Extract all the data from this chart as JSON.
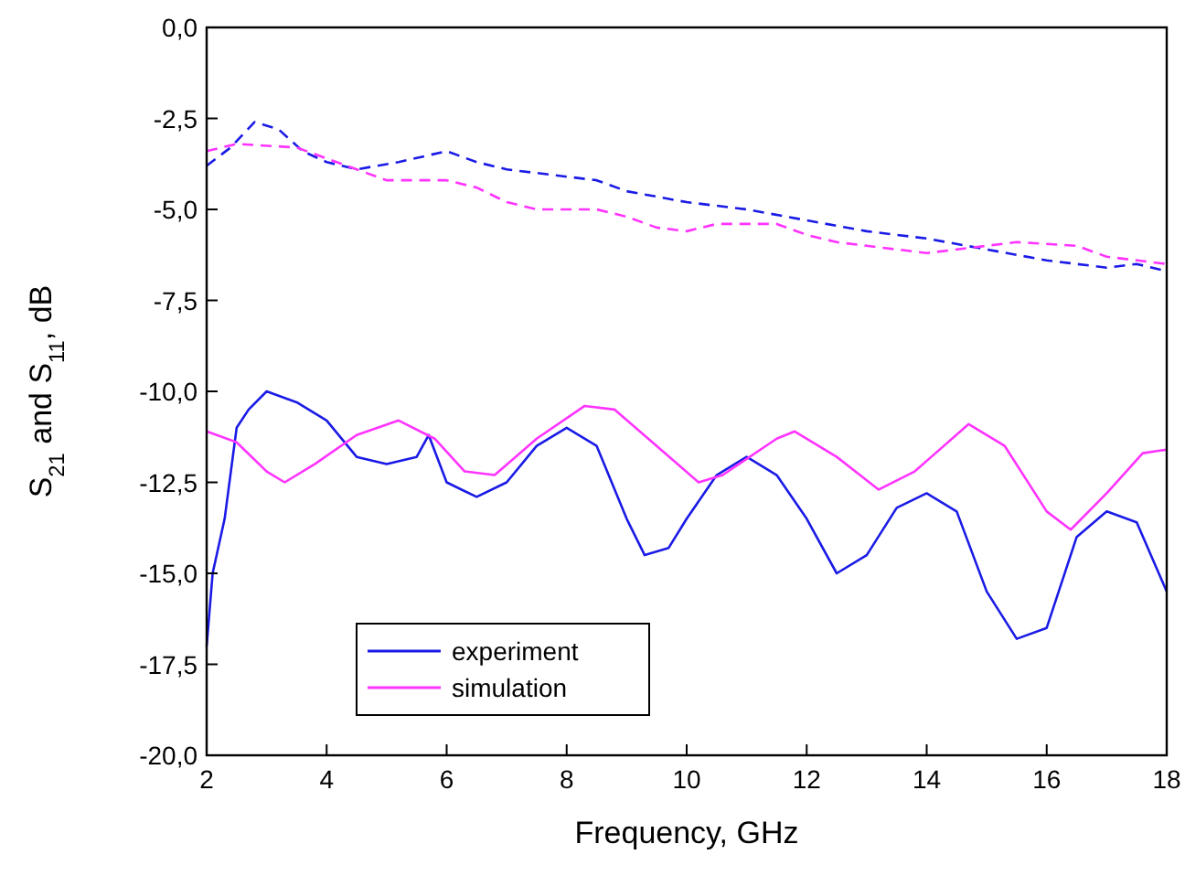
{
  "chart_data": {
    "type": "line",
    "xlabel": "Frequency, GHz",
    "ylabel": "S$_{21}$ and S$_{11}$, dB",
    "xlim": [
      2,
      18
    ],
    "xticks": [
      2,
      4,
      6,
      8,
      10,
      12,
      14,
      16,
      18
    ],
    "ylim": [
      -20,
      0
    ],
    "yticks": [
      {
        "value": -20,
        "label": "-20,0"
      },
      {
        "value": -17.5,
        "label": "-17,5"
      },
      {
        "value": -15,
        "label": "-15,0"
      },
      {
        "value": -12.5,
        "label": "-12,5"
      },
      {
        "value": -10,
        "label": "-10,0"
      },
      {
        "value": -7.5,
        "label": "-7,5"
      },
      {
        "value": -5,
        "label": "-5,0"
      },
      {
        "value": -2.5,
        "label": "-2,5"
      },
      {
        "value": 0,
        "label": "0,0"
      }
    ],
    "grid": false,
    "legend": "bottom left",
    "series": [
      {
        "name": "experiment",
        "color": "#1a1ae6",
        "line_style": "solid",
        "x": [
          2,
          2.1,
          2.3,
          2.5,
          2.7,
          3,
          3.5,
          4,
          4.5,
          5,
          5.5,
          5.7,
          6,
          6.5,
          7,
          7.5,
          8,
          8.5,
          9,
          9.3,
          9.7,
          10,
          10.5,
          11,
          11.5,
          12,
          12.5,
          13,
          13.5,
          14,
          14.5,
          15,
          15.5,
          16,
          16.5,
          17,
          17.5,
          18
        ],
        "values": [
          -17,
          -15,
          -13.5,
          -11,
          -10.5,
          -10,
          -10.3,
          -10.8,
          -11.8,
          -12,
          -11.8,
          -11.2,
          -12.5,
          -12.9,
          -12.5,
          -11.5,
          -11,
          -11.5,
          -13.5,
          -14.5,
          -14.3,
          -13.5,
          -12.3,
          -11.8,
          -12.3,
          -13.5,
          -15,
          -14.5,
          -13.2,
          -12.8,
          -13.3,
          -15.5,
          -16.8,
          -16.5,
          -14,
          -13.3,
          -13.6,
          -15.5
        ]
      },
      {
        "name": "simulation",
        "color": "#ff33ff",
        "line_style": "solid",
        "x": [
          2,
          2.5,
          3,
          3.3,
          3.8,
          4.5,
          5.2,
          5.8,
          6.3,
          6.8,
          7.5,
          8.3,
          8.8,
          9.5,
          10.2,
          10.6,
          11.5,
          11.8,
          12.5,
          13.2,
          13.8,
          14.7,
          15.3,
          16,
          16.4,
          17,
          17.6,
          18
        ],
        "values": [
          -11.1,
          -11.4,
          -12.2,
          -12.5,
          -12,
          -11.2,
          -10.8,
          -11.3,
          -12.2,
          -12.3,
          -11.3,
          -10.4,
          -10.5,
          -11.5,
          -12.5,
          -12.3,
          -11.3,
          -11.1,
          -11.8,
          -12.7,
          -12.2,
          -10.9,
          -11.5,
          -13.3,
          -13.8,
          -12.8,
          -11.7,
          -11.6
        ]
      },
      {
        "color": "#1a1ae6",
        "line_style": "dashed",
        "x": [
          2,
          2.4,
          2.8,
          3.2,
          3.6,
          4,
          4.5,
          5.2,
          6,
          6.5,
          7,
          8,
          8.5,
          9,
          10,
          11,
          12,
          13,
          14,
          15,
          16,
          17,
          17.5,
          18
        ],
        "values": [
          -3.8,
          -3.3,
          -2.6,
          -2.8,
          -3.4,
          -3.7,
          -3.9,
          -3.7,
          -3.4,
          -3.7,
          -3.9,
          -4.1,
          -4.2,
          -4.5,
          -4.8,
          -5,
          -5.3,
          -5.6,
          -5.8,
          -6.1,
          -6.4,
          -6.6,
          -6.5,
          -6.7
        ]
      },
      {
        "color": "#ff33ff",
        "line_style": "dashed",
        "x": [
          2,
          2.5,
          3.5,
          4,
          4.5,
          5,
          6,
          6.5,
          7,
          7.5,
          8.5,
          9,
          9.5,
          10,
          10.5,
          11.5,
          12,
          12.5,
          13,
          14,
          15,
          15.5,
          16.5,
          17,
          18
        ],
        "values": [
          -3.4,
          -3.2,
          -3.3,
          -3.6,
          -3.9,
          -4.2,
          -4.2,
          -4.4,
          -4.8,
          -5,
          -5,
          -5.2,
          -5.5,
          -5.6,
          -5.4,
          -5.4,
          -5.7,
          -5.9,
          -6,
          -6.2,
          -6,
          -5.9,
          -6,
          -6.3,
          -6.5
        ]
      }
    ]
  }
}
